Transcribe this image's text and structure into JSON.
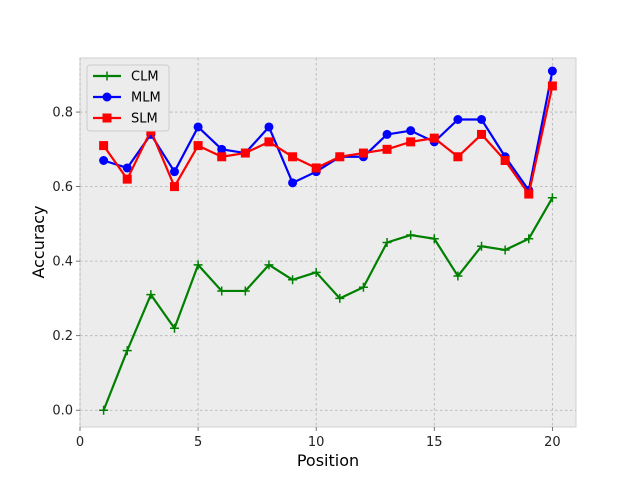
{
  "chart_data": {
    "type": "line",
    "xlabel": "Position",
    "ylabel": "Accuracy",
    "xlim": [
      0,
      21
    ],
    "ylim": [
      -0.045,
      0.945
    ],
    "xticks": [
      0,
      5,
      10,
      15,
      20
    ],
    "xtick_labels": [
      "0",
      "5",
      "10",
      "15",
      "20"
    ],
    "yticks": [
      0.0,
      0.2,
      0.4,
      0.6,
      0.8
    ],
    "ytick_labels": [
      "0.0",
      "0.2",
      "0.4",
      "0.6",
      "0.8"
    ],
    "grid": true,
    "legend_position": "top-left",
    "x": [
      1,
      2,
      3,
      4,
      5,
      6,
      7,
      8,
      9,
      10,
      11,
      12,
      13,
      14,
      15,
      16,
      17,
      18,
      19,
      20
    ],
    "series": [
      {
        "name": "CLM",
        "color": "#008000",
        "marker": "plus",
        "values": [
          0.0,
          0.16,
          0.31,
          0.22,
          0.39,
          0.32,
          0.32,
          0.39,
          0.35,
          0.37,
          0.3,
          0.33,
          0.45,
          0.47,
          0.46,
          0.36,
          0.44,
          0.43,
          0.46,
          0.57
        ]
      },
      {
        "name": "MLM",
        "color": "#0000ff",
        "marker": "circle",
        "values": [
          0.67,
          0.65,
          0.74,
          0.64,
          0.76,
          0.7,
          0.69,
          0.76,
          0.61,
          0.64,
          0.68,
          0.68,
          0.74,
          0.75,
          0.72,
          0.78,
          0.78,
          0.68,
          0.59,
          0.91
        ]
      },
      {
        "name": "SLM",
        "color": "#ff0000",
        "marker": "square",
        "values": [
          0.71,
          0.62,
          0.75,
          0.6,
          0.71,
          0.68,
          0.69,
          0.72,
          0.68,
          0.65,
          0.68,
          0.69,
          0.7,
          0.72,
          0.73,
          0.68,
          0.74,
          0.67,
          0.58,
          0.87
        ]
      }
    ]
  }
}
